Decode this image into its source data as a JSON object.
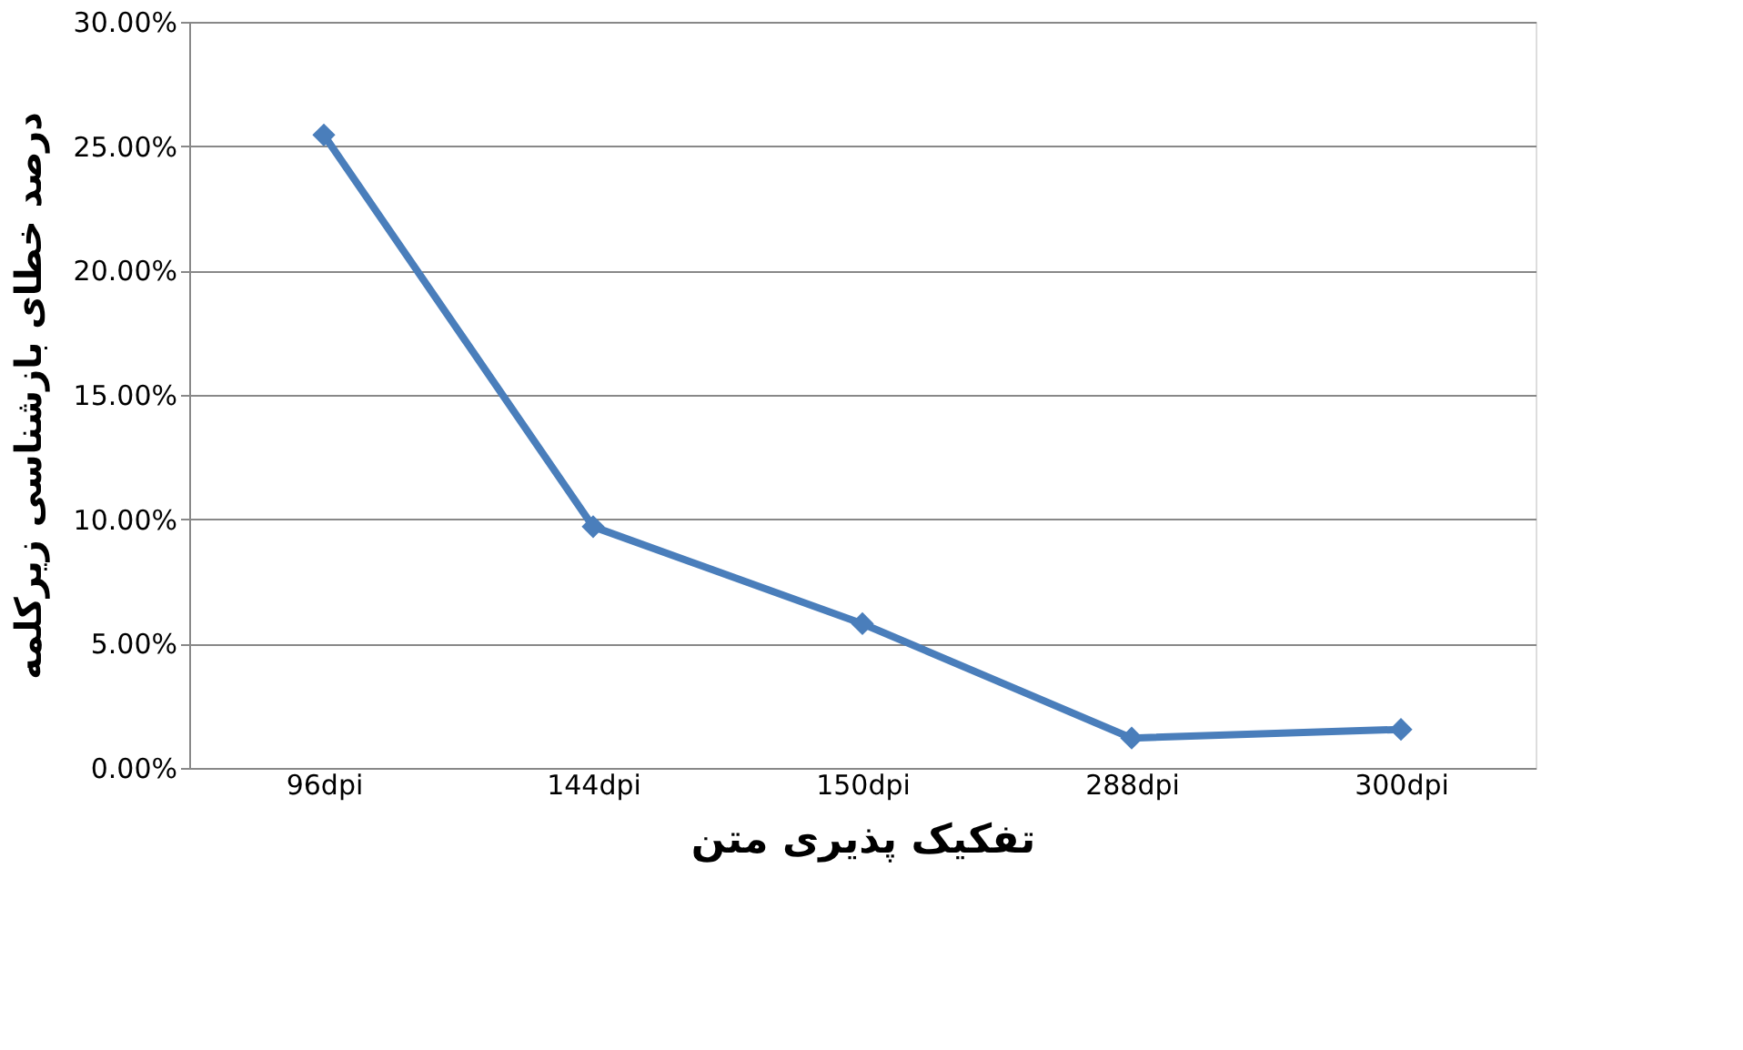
{
  "chart_data": {
    "type": "line",
    "xlabel": "تفکیک پذیری متن",
    "ylabel": "درصد خطای بازشناسی زیرکلمه",
    "categories": [
      "96dpi",
      "144dpi",
      "150dpi",
      "288dpi",
      "300dpi"
    ],
    "series": [
      {
        "color": "#4a7ebb",
        "values": [
          25.45,
          9.7,
          5.8,
          1.2,
          1.55
        ]
      }
    ],
    "ylim": [
      0,
      30
    ],
    "yticks": [
      {
        "value": 0,
        "label": "0.00%"
      },
      {
        "value": 5,
        "label": "5.00%"
      },
      {
        "value": 10,
        "label": "10.00%"
      },
      {
        "value": 15,
        "label": "15.00%"
      },
      {
        "value": 20,
        "label": "20.00%"
      },
      {
        "value": 25,
        "label": "25.00%"
      },
      {
        "value": 30,
        "label": "30.00%"
      }
    ],
    "grid": "y",
    "marker": "diamond",
    "line_style": "solid"
  }
}
